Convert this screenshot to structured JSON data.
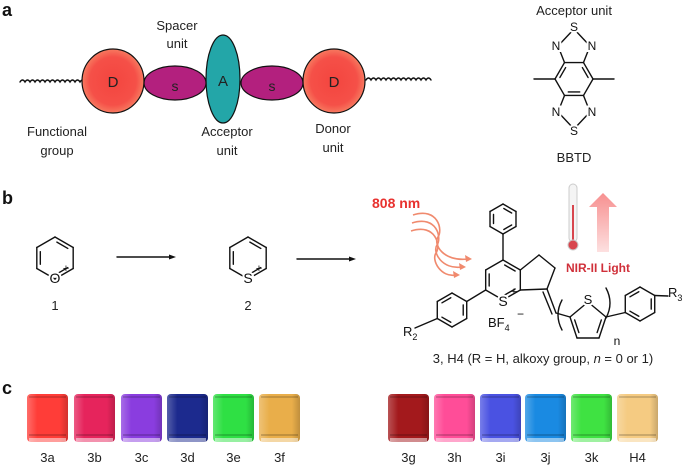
{
  "panels": {
    "a": "a",
    "b": "b",
    "c": "c"
  },
  "panel_a": {
    "units": {
      "donor": "D",
      "spacer": "s",
      "acceptor": "A"
    },
    "labels": {
      "spacer_1": "Spacer",
      "spacer_2": "unit",
      "functional_1": "Functional",
      "functional_2": "group",
      "acceptor_1": "Acceptor",
      "acceptor_2": "unit",
      "donor_1": "Donor",
      "donor_2": "unit"
    },
    "colors": {
      "donor": "#f4453f",
      "spacer": "#b3207e",
      "acceptor": "#23a6a8"
    },
    "bbtd": {
      "title": "Acceptor unit",
      "name": "BBTD",
      "atoms": {
        "n": "N",
        "s": "S"
      }
    }
  },
  "panel_b": {
    "compound_1": {
      "label": "1",
      "heteroatom": "O",
      "charge": "+"
    },
    "compound_2": {
      "label": "2",
      "heteroatom": "S",
      "charge": "+"
    },
    "product": {
      "heteroatom": "S",
      "charge": "+",
      "counterion": "BF",
      "counterion_sub": "4",
      "counterion_charge": "−",
      "r2": "R",
      "r2_sub": "2",
      "r3": "R",
      "r3_sub": "3",
      "thiophene_s": "S",
      "repeat": "n",
      "caption_a": "3, H4 (R = H, alkoxy group, ",
      "caption_n": "n",
      "caption_b": " = 0 or 1)"
    },
    "excitation": "808 nm",
    "emission": "NIR-II Light",
    "colors": {
      "excitation": "#e8322f",
      "wave": "#f08a6e",
      "emission": "#d0303a",
      "arrow": "#f7a0a0"
    }
  },
  "panel_c": {
    "left": [
      {
        "label": "3a",
        "color": "#ff3d38"
      },
      {
        "label": "3b",
        "color": "#e6245c"
      },
      {
        "label": "3c",
        "color": "#8a3ddf"
      },
      {
        "label": "3d",
        "color": "#1c2a8e"
      },
      {
        "label": "3e",
        "color": "#2fe044"
      },
      {
        "label": "3f",
        "color": "#e9ae4a"
      }
    ],
    "right": [
      {
        "label": "3g",
        "color": "#a3191c"
      },
      {
        "label": "3h",
        "color": "#ff4d98"
      },
      {
        "label": "3i",
        "color": "#4a52e2"
      },
      {
        "label": "3j",
        "color": "#1a8ae2"
      },
      {
        "label": "3k",
        "color": "#3fe242"
      },
      {
        "label": "H4",
        "color": "#f5cb82"
      }
    ]
  }
}
